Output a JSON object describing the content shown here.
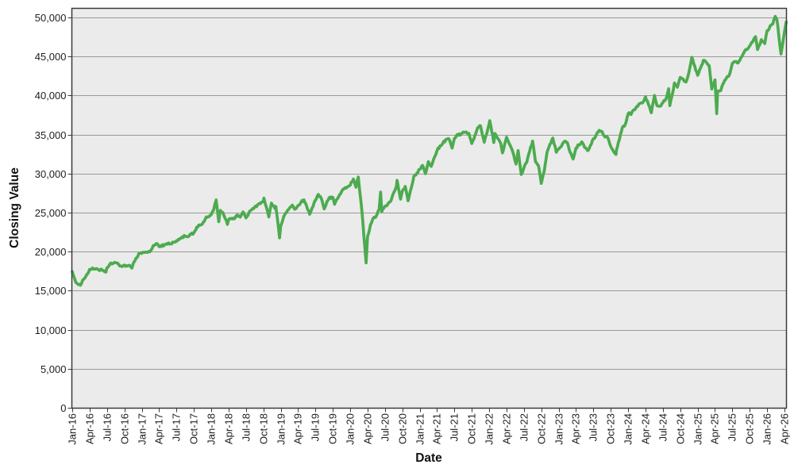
{
  "chart_data": {
    "type": "line",
    "title": "",
    "xlabel": "Date",
    "ylabel": "Closing Value",
    "legend": "none",
    "grid": "horizontal",
    "x_tick_labels": [
      "Jan-16",
      "Apr-16",
      "Jul-16",
      "Oct-16",
      "Jan-17",
      "Apr-17",
      "Jul-17",
      "Oct-17",
      "Jan-18",
      "Apr-18",
      "Jul-18",
      "Oct-18",
      "Jan-19",
      "Apr-19",
      "Jul-19",
      "Oct-19",
      "Jan-20",
      "Apr-20",
      "Jul-20",
      "Oct-20",
      "Jan-21",
      "Apr-21",
      "Jul-21",
      "Oct-21",
      "Jan-22",
      "Apr-22",
      "Jul-22",
      "Oct-22",
      "Jan-23",
      "Apr-23",
      "Jul-23",
      "Oct-23",
      "Jan-24",
      "Apr-24",
      "Jul-24",
      "Oct-24",
      "Jan-25",
      "Apr-25",
      "Jul-25",
      "Oct-25",
      "Jan-26",
      "Apr-26"
    ],
    "x_tick_interval_months": 3,
    "y_tick_values": [
      0,
      5000,
      10000,
      15000,
      20000,
      25000,
      30000,
      35000,
      40000,
      45000,
      50000
    ],
    "y_tick_labels": [
      "0",
      "5,000",
      "10,000",
      "15,000",
      "20,000",
      "25,000",
      "30,000",
      "35,000",
      "40,000",
      "45,000",
      "50,000"
    ],
    "ylim": [
      0,
      51200
    ],
    "xlim_months": [
      0,
      123.3
    ],
    "colors": {
      "line": "#4CAB4F",
      "plot_bg": "#EBEBEB",
      "grid": "#9A9A9A",
      "border": "#3A3A3A",
      "text": "#212121",
      "page_bg": "#FFFFFF"
    },
    "series": [
      {
        "name": "Closing Value",
        "points_month_value": [
          [
            0,
            17425
          ],
          [
            0.6,
            16093
          ],
          [
            1.4,
            15660
          ],
          [
            2,
            16517
          ],
          [
            2.5,
            17050
          ],
          [
            3,
            17685
          ],
          [
            3.5,
            17925
          ],
          [
            4,
            17774
          ],
          [
            4.7,
            17530
          ],
          [
            5,
            17787
          ],
          [
            5.8,
            17400
          ],
          [
            6,
            17930
          ],
          [
            6.5,
            18460
          ],
          [
            7,
            18432
          ],
          [
            7.5,
            18570
          ],
          [
            8,
            18401
          ],
          [
            8.6,
            18085
          ],
          [
            9,
            18308
          ],
          [
            9.5,
            18160
          ],
          [
            10,
            18142
          ],
          [
            10.3,
            17888
          ],
          [
            10.6,
            18590
          ],
          [
            11,
            19124
          ],
          [
            11.5,
            19750
          ],
          [
            12,
            19763
          ],
          [
            12.5,
            19890
          ],
          [
            13,
            19864
          ],
          [
            13.6,
            20180
          ],
          [
            14,
            20812
          ],
          [
            14.5,
            21005
          ],
          [
            15,
            20663
          ],
          [
            15.5,
            20700
          ],
          [
            16,
            20941
          ],
          [
            16.5,
            20975
          ],
          [
            17,
            21009
          ],
          [
            17.5,
            21190
          ],
          [
            18,
            21350
          ],
          [
            18.5,
            21610
          ],
          [
            19,
            21891
          ],
          [
            19.5,
            21990
          ],
          [
            20,
            21948
          ],
          [
            20.5,
            22260
          ],
          [
            21,
            22405
          ],
          [
            21.5,
            23120
          ],
          [
            22,
            23377
          ],
          [
            22.5,
            23590
          ],
          [
            23,
            24272
          ],
          [
            23.5,
            24510
          ],
          [
            24,
            24719
          ],
          [
            24.4,
            25296
          ],
          [
            24.85,
            26617
          ],
          [
            25.3,
            23860
          ],
          [
            25.6,
            25310
          ],
          [
            26,
            25029
          ],
          [
            26.8,
            23533
          ],
          [
            27,
            24103
          ],
          [
            27.5,
            24300
          ],
          [
            28,
            24163
          ],
          [
            28.5,
            24700
          ],
          [
            29,
            24416
          ],
          [
            29.5,
            25090
          ],
          [
            30,
            24271
          ],
          [
            30.5,
            24920
          ],
          [
            31,
            25415
          ],
          [
            31.5,
            25700
          ],
          [
            32,
            25965
          ],
          [
            32.5,
            26150
          ],
          [
            33,
            26458
          ],
          [
            33.1,
            26828
          ],
          [
            33.95,
            24443
          ],
          [
            34.4,
            26180
          ],
          [
            35,
            25538
          ],
          [
            35.15,
            25826
          ],
          [
            35.8,
            21792
          ],
          [
            36,
            23327
          ],
          [
            36.5,
            24420
          ],
          [
            37,
            25000
          ],
          [
            37.5,
            25540
          ],
          [
            38,
            25916
          ],
          [
            38.4,
            25450
          ],
          [
            39,
            25929
          ],
          [
            39.5,
            26340
          ],
          [
            40,
            26593
          ],
          [
            40.5,
            25750
          ],
          [
            41,
            24815
          ],
          [
            42,
            26600
          ],
          [
            42.5,
            27350
          ],
          [
            43,
            26864
          ],
          [
            43.5,
            25480
          ],
          [
            44,
            26403
          ],
          [
            44.5,
            26950
          ],
          [
            45,
            26917
          ],
          [
            45.3,
            26080
          ],
          [
            46,
            27046
          ],
          [
            46.5,
            27690
          ],
          [
            47,
            28051
          ],
          [
            47.5,
            28290
          ],
          [
            48,
            28538
          ],
          [
            48.55,
            29348
          ],
          [
            49,
            28256
          ],
          [
            49.4,
            29551
          ],
          [
            50,
            25409
          ],
          [
            50.75,
            18592
          ],
          [
            51,
            21917
          ],
          [
            51.5,
            23450
          ],
          [
            52,
            24346
          ],
          [
            52.5,
            24575
          ],
          [
            53,
            25383
          ],
          [
            53.25,
            27572
          ],
          [
            53.45,
            25128
          ],
          [
            54,
            25813
          ],
          [
            54.5,
            26070
          ],
          [
            55,
            26428
          ],
          [
            55.5,
            27540
          ],
          [
            56,
            28430
          ],
          [
            56.1,
            29100
          ],
          [
            56.7,
            26763
          ],
          [
            57,
            27782
          ],
          [
            57.5,
            28310
          ],
          [
            58,
            26502
          ],
          [
            59,
            29639
          ],
          [
            59.5,
            30040
          ],
          [
            60,
            30606
          ],
          [
            60.5,
            31010
          ],
          [
            61,
            29983
          ],
          [
            61.5,
            31490
          ],
          [
            62,
            30932
          ],
          [
            63,
            32981
          ],
          [
            63.5,
            33520
          ],
          [
            64,
            33875
          ],
          [
            64.5,
            34320
          ],
          [
            65,
            34529
          ],
          [
            65.6,
            33290
          ],
          [
            66,
            34503
          ],
          [
            66.5,
            35010
          ],
          [
            67,
            34935
          ],
          [
            67.5,
            35310
          ],
          [
            68,
            35361
          ],
          [
            68.5,
            35120
          ],
          [
            69,
            33844
          ],
          [
            69.5,
            34820
          ],
          [
            70,
            35820
          ],
          [
            70.5,
            36090
          ],
          [
            71,
            34484
          ],
          [
            71.15,
            34022
          ],
          [
            72,
            36338
          ],
          [
            72.1,
            36800
          ],
          [
            72.8,
            34010
          ],
          [
            73,
            35132
          ],
          [
            74,
            33892
          ],
          [
            74.3,
            32632
          ],
          [
            75,
            34678
          ],
          [
            76,
            32977
          ],
          [
            76.65,
            31253
          ],
          [
            77,
            32990
          ],
          [
            77.55,
            29889
          ],
          [
            78,
            30775
          ],
          [
            78.5,
            31510
          ],
          [
            79,
            32845
          ],
          [
            79.5,
            34152
          ],
          [
            80,
            31510
          ],
          [
            80.5,
            31050
          ],
          [
            81,
            28726
          ],
          [
            81.5,
            30290
          ],
          [
            82,
            32733
          ],
          [
            82.5,
            33740
          ],
          [
            83,
            34589
          ],
          [
            83.6,
            32760
          ],
          [
            84,
            33147
          ],
          [
            84.5,
            33520
          ],
          [
            85,
            34086
          ],
          [
            85.5,
            33980
          ],
          [
            86,
            32657
          ],
          [
            86.5,
            31870
          ],
          [
            87,
            33274
          ],
          [
            87.5,
            33690
          ],
          [
            88,
            34098
          ],
          [
            88.5,
            33310
          ],
          [
            89,
            32908
          ],
          [
            89.5,
            33570
          ],
          [
            90,
            34408
          ],
          [
            90.5,
            34960
          ],
          [
            91,
            35559
          ],
          [
            91.5,
            35410
          ],
          [
            92,
            34722
          ],
          [
            92.5,
            34610
          ],
          [
            93,
            33508
          ],
          [
            93.9,
            32418
          ],
          [
            94,
            33053
          ],
          [
            94.5,
            34390
          ],
          [
            95,
            35951
          ],
          [
            95.5,
            36240
          ],
          [
            96,
            37690
          ],
          [
            96.5,
            37620
          ],
          [
            97,
            38150
          ],
          [
            97.5,
            38610
          ],
          [
            98,
            38996
          ],
          [
            98.5,
            39090
          ],
          [
            99,
            39807
          ],
          [
            99.5,
            38880
          ],
          [
            100,
            37816
          ],
          [
            100.55,
            40004
          ],
          [
            101,
            38686
          ],
          [
            101.5,
            38590
          ],
          [
            102,
            39119
          ],
          [
            102.5,
            39510
          ],
          [
            103,
            40843
          ],
          [
            103.2,
            38703
          ],
          [
            103.6,
            40010
          ],
          [
            104,
            41563
          ],
          [
            104.5,
            41050
          ],
          [
            105,
            42330
          ],
          [
            105.5,
            42080
          ],
          [
            106,
            41763
          ],
          [
            106.5,
            43010
          ],
          [
            107,
            44911
          ],
          [
            107.5,
            43760
          ],
          [
            108,
            42544
          ],
          [
            108.5,
            43480
          ],
          [
            109,
            44545
          ],
          [
            109.5,
            44280
          ],
          [
            110,
            43841
          ],
          [
            110.45,
            40814
          ],
          [
            111,
            42002
          ],
          [
            111.3,
            37646
          ],
          [
            111.45,
            40608
          ],
          [
            112,
            40669
          ],
          [
            112.5,
            41580
          ],
          [
            113,
            42270
          ],
          [
            113.5,
            42680
          ],
          [
            114,
            44095
          ],
          [
            114.5,
            44380
          ],
          [
            115,
            44131
          ],
          [
            115.5,
            44870
          ],
          [
            116,
            45545
          ],
          [
            116.5,
            45880
          ],
          [
            117,
            46398
          ],
          [
            117.5,
            46860
          ],
          [
            118,
            47562
          ],
          [
            118.35,
            45920
          ],
          [
            119,
            47100
          ],
          [
            119.6,
            46640
          ],
          [
            120,
            48300
          ],
          [
            120.7,
            49010
          ],
          [
            121,
            49230
          ],
          [
            121.4,
            50180
          ],
          [
            121.7,
            49700
          ],
          [
            122.4,
            45310
          ],
          [
            123.3,
            49420
          ]
        ]
      }
    ]
  }
}
